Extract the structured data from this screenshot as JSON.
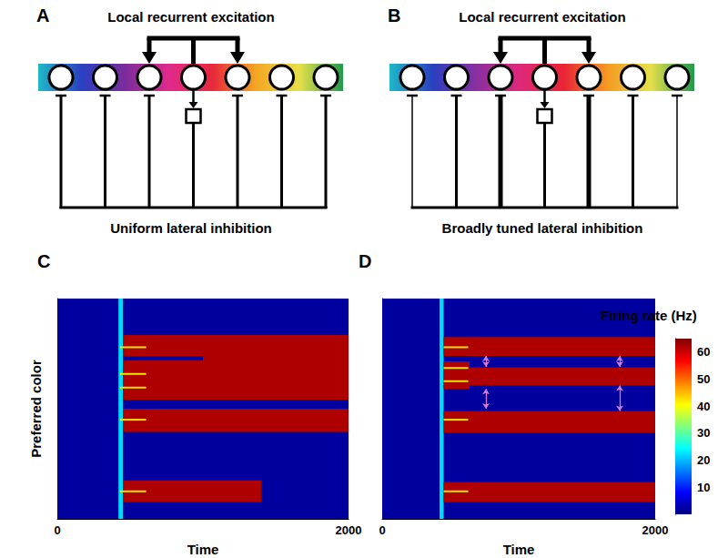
{
  "diagrams": [
    {
      "label": "A",
      "top_text": "Local recurrent excitation",
      "bottom_text": "Uniform lateral inhibition",
      "inhibition": "uniform",
      "neurons": 7
    },
    {
      "label": "B",
      "top_text": "Local recurrent excitation",
      "bottom_text": "Broadly tuned lateral inhibition",
      "inhibition": "broadly tuned",
      "neurons": 7
    }
  ],
  "chart_data": [
    {
      "type": "heatmap",
      "title": "C",
      "x_label": "Time",
      "y_label": "Preferred color",
      "xlim": [
        0,
        2000
      ],
      "xticks": [
        0,
        2000
      ],
      "ylim": [
        0,
        100
      ],
      "tick_labels": "x",
      "cells": [
        [
          0,
          2000,
          0,
          100,
          2
        ],
        [
          420,
          450,
          0,
          100,
          22
        ],
        [
          450,
          2000,
          54,
          83.5,
          62
        ],
        [
          450,
          1000,
          72,
          73.8,
          2
        ],
        [
          450,
          2000,
          39.5,
          50,
          62
        ],
        [
          450,
          1400,
          7.5,
          17.5,
          62
        ]
      ],
      "cues": {
        "start": 430,
        "end": 610,
        "colors": [
          77.9,
          65.8,
          59.6,
          45,
          12.5
        ]
      }
    },
    {
      "type": "heatmap",
      "title": "D",
      "x_label": "Time",
      "xlim": [
        0,
        2000
      ],
      "xticks": [
        0,
        2000
      ],
      "ylim": [
        0,
        100
      ],
      "tick_labels": "x",
      "cells": [
        [
          0,
          2000,
          0,
          100,
          2
        ],
        [
          420,
          450,
          0,
          100,
          22
        ],
        [
          450,
          2000,
          74,
          82.5,
          62
        ],
        [
          450,
          640,
          59,
          71.5,
          62
        ],
        [
          640,
          2000,
          60.5,
          68.8,
          62
        ],
        [
          450,
          2000,
          39,
          49,
          62
        ],
        [
          450,
          2000,
          7.5,
          16.7,
          62
        ]
      ],
      "cues": {
        "start": 450,
        "end": 630,
        "colors": [
          77.9,
          68.5,
          62.5,
          45,
          12.5
        ]
      },
      "arrows": [
        [
          760,
          74,
          69
        ],
        [
          760,
          59,
          50
        ],
        [
          1740,
          74,
          69
        ],
        [
          1740,
          60.5,
          49
        ]
      ],
      "colorbar": {
        "label": "Firing rate (Hz)",
        "range": [
          0,
          65
        ],
        "ticks": [
          10,
          20,
          30,
          40,
          50,
          60
        ]
      }
    }
  ]
}
